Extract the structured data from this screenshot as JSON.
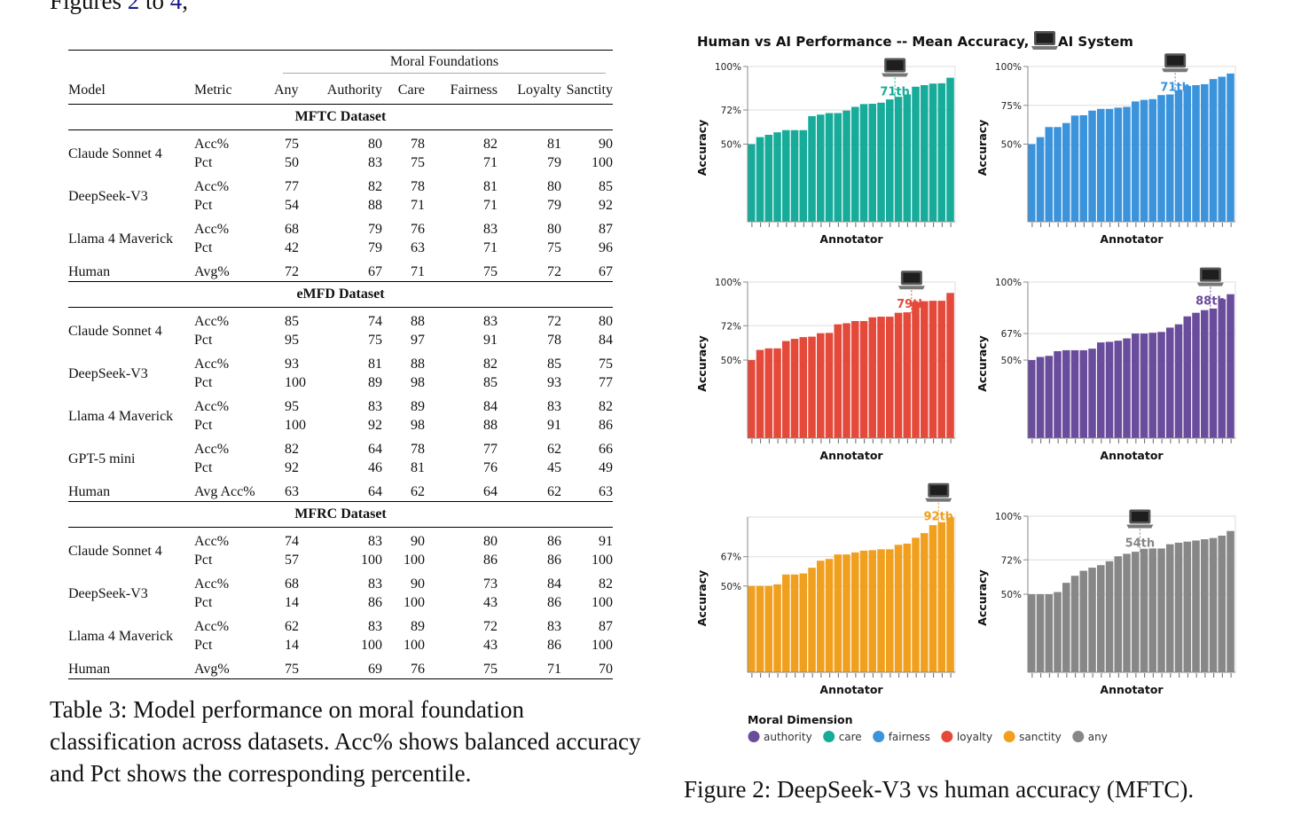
{
  "top_text": {
    "prefix": "Figures ",
    "link1": "2",
    "middle": " to ",
    "link2": "4",
    "suffix": ","
  },
  "table": {
    "group_header": "Moral Foundations",
    "columns": [
      "Model",
      "Metric",
      "Any",
      "Authority",
      "Care",
      "Fairness",
      "Loyalty",
      "Sanctity"
    ],
    "sections": [
      {
        "title": "MFTC Dataset",
        "rows": [
          {
            "model": "Claude Sonnet 4",
            "metrics": [
              [
                "Acc%",
                "75",
                "80",
                "78",
                "82",
                "81",
                "90"
              ],
              [
                "Pct",
                "50",
                "83",
                "75",
                "71",
                "79",
                "100"
              ]
            ]
          },
          {
            "model": "DeepSeek-V3",
            "metrics": [
              [
                "Acc%",
                "77",
                "82",
                "78",
                "81",
                "80",
                "85"
              ],
              [
                "Pct",
                "54",
                "88",
                "71",
                "71",
                "79",
                "92"
              ]
            ]
          },
          {
            "model": "Llama 4 Maverick",
            "metrics": [
              [
                "Acc%",
                "68",
                "79",
                "76",
                "83",
                "80",
                "87"
              ],
              [
                "Pct",
                "42",
                "79",
                "63",
                "71",
                "75",
                "96"
              ]
            ]
          },
          {
            "model": "Human",
            "metrics": [
              [
                "Avg%",
                "72",
                "67",
                "71",
                "75",
                "72",
                "67"
              ]
            ]
          }
        ]
      },
      {
        "title": "eMFD Dataset",
        "rows": [
          {
            "model": "Claude Sonnet 4",
            "metrics": [
              [
                "Acc%",
                "85",
                "74",
                "88",
                "83",
                "72",
                "80"
              ],
              [
                "Pct",
                "95",
                "75",
                "97",
                "91",
                "78",
                "84"
              ]
            ]
          },
          {
            "model": "DeepSeek-V3",
            "metrics": [
              [
                "Acc%",
                "93",
                "81",
                "88",
                "82",
                "85",
                "75"
              ],
              [
                "Pct",
                "100",
                "89",
                "98",
                "85",
                "93",
                "77"
              ]
            ]
          },
          {
            "model": "Llama 4 Maverick",
            "metrics": [
              [
                "Acc%",
                "95",
                "83",
                "89",
                "84",
                "83",
                "82"
              ],
              [
                "Pct",
                "100",
                "92",
                "98",
                "88",
                "91",
                "86"
              ]
            ]
          },
          {
            "model": "GPT-5 mini",
            "metrics": [
              [
                "Acc%",
                "82",
                "64",
                "78",
                "77",
                "62",
                "66"
              ],
              [
                "Pct",
                "92",
                "46",
                "81",
                "76",
                "45",
                "49"
              ]
            ]
          },
          {
            "model": "Human",
            "metrics": [
              [
                "Avg Acc%",
                "63",
                "64",
                "62",
                "64",
                "62",
                "63"
              ]
            ]
          }
        ]
      },
      {
        "title": "MFRC Dataset",
        "rows": [
          {
            "model": "Claude Sonnet 4",
            "metrics": [
              [
                "Acc%",
                "74",
                "83",
                "90",
                "80",
                "86",
                "91"
              ],
              [
                "Pct",
                "57",
                "100",
                "100",
                "86",
                "86",
                "100"
              ]
            ]
          },
          {
            "model": "DeepSeek-V3",
            "metrics": [
              [
                "Acc%",
                "68",
                "83",
                "90",
                "73",
                "84",
                "82"
              ],
              [
                "Pct",
                "14",
                "86",
                "100",
                "43",
                "86",
                "100"
              ]
            ]
          },
          {
            "model": "Llama 4 Maverick",
            "metrics": [
              [
                "Acc%",
                "62",
                "83",
                "89",
                "72",
                "83",
                "87"
              ],
              [
                "Pct",
                "14",
                "100",
                "100",
                "43",
                "86",
                "100"
              ]
            ]
          },
          {
            "model": "Human",
            "metrics": [
              [
                "Avg%",
                "75",
                "69",
                "76",
                "75",
                "71",
                "70"
              ]
            ]
          }
        ]
      }
    ],
    "caption": "Table 3: Model performance on moral foundation classification across datasets. Acc% shows balanced accuracy and Pct shows the corresponding percentile."
  },
  "figure": {
    "title": "Human vs AI Performance -- Mean Accuracy, -- 💻 AI System",
    "title_text": "Human vs AI Performance -- Mean Accuracy, --",
    "title_suffix": "AI System",
    "legend_title": "Moral Dimension",
    "legend": [
      {
        "label": "authority",
        "color": "#6a4c9c"
      },
      {
        "label": "care",
        "color": "#17ab9a"
      },
      {
        "label": "fairness",
        "color": "#3b93db"
      },
      {
        "label": "loyalty",
        "color": "#e4493a"
      },
      {
        "label": "sanctity",
        "color": "#f0a01e"
      },
      {
        "label": "any",
        "color": "#878787"
      }
    ],
    "caption": "Figure 2: DeepSeek-V3 vs human accuracy (MFTC)."
  },
  "chart_data": [
    {
      "type": "bar",
      "dimension": "care",
      "color": "#17ab9a",
      "xlabel": "Annotator",
      "ylabel": "Accuracy",
      "ylim": [
        0,
        100
      ],
      "yticks": [
        "100%",
        "72%",
        "50%"
      ],
      "ytick_values": [
        100,
        72,
        50
      ],
      "grid": true,
      "ai_percentile_label": "71th",
      "ai_percentile": 71,
      "ai_accuracy": 78,
      "values": [
        50,
        54.5,
        56,
        57.6,
        59,
        59,
        59,
        68,
        69,
        70,
        70,
        71.6,
        74,
        75.8,
        76,
        76.7,
        78.8,
        80.5,
        82,
        87,
        88,
        89,
        89.2,
        92.8
      ]
    },
    {
      "type": "bar",
      "dimension": "fairness",
      "color": "#3b93db",
      "xlabel": "Annotator",
      "ylabel": "Accuracy",
      "ylim": [
        0,
        100
      ],
      "yticks": [
        "100%",
        "75%",
        "50%"
      ],
      "ytick_values": [
        100,
        75,
        50
      ],
      "grid": true,
      "ai_percentile_label": "71th",
      "ai_percentile": 71,
      "ai_accuracy": 81,
      "values": [
        50,
        54.5,
        61,
        61,
        63.6,
        68.4,
        68.6,
        71.6,
        72.7,
        72.7,
        73.5,
        74,
        77.5,
        78.5,
        79,
        81.6,
        82,
        84.7,
        87.4,
        88,
        88.6,
        91.9,
        93.4,
        95.5
      ]
    },
    {
      "type": "bar",
      "dimension": "loyalty",
      "color": "#e4493a",
      "xlabel": "Annotator",
      "ylabel": "Accuracy",
      "ylim": [
        0,
        100
      ],
      "yticks": [
        "100%",
        "72%",
        "50%"
      ],
      "ytick_values": [
        100,
        72,
        50
      ],
      "grid": true,
      "ai_percentile_label": "79th",
      "ai_percentile": 79,
      "ai_accuracy": 80,
      "values": [
        50,
        56.5,
        57.5,
        57.5,
        62.2,
        63.6,
        64.7,
        65,
        67.2,
        67.4,
        72.9,
        73.6,
        75,
        75,
        77.4,
        77.8,
        77.8,
        80.3,
        80.6,
        87,
        87.7,
        88,
        88,
        93
      ]
    },
    {
      "type": "bar",
      "dimension": "authority",
      "color": "#6a4c9c",
      "xlabel": "Annotator",
      "ylabel": "Accuracy",
      "ylim": [
        0,
        100
      ],
      "yticks": [
        "100%",
        "67%",
        "50%"
      ],
      "ytick_values": [
        100,
        67,
        50
      ],
      "grid": true,
      "ai_percentile_label": "88th",
      "ai_percentile": 88,
      "ai_accuracy": 82,
      "values": [
        50,
        52,
        52.7,
        55.7,
        56.3,
        56.3,
        56.3,
        57.3,
        61.3,
        61.7,
        62.4,
        63.9,
        67,
        67,
        67.5,
        68,
        70.8,
        72.9,
        78,
        80.3,
        82,
        83,
        89,
        92.2
      ]
    },
    {
      "type": "bar",
      "dimension": "sanctity",
      "color": "#f0a01e",
      "xlabel": "Annotator",
      "ylabel": "Accuracy",
      "ylim": [
        0,
        90
      ],
      "yticks": [
        "67%",
        "50%"
      ],
      "ytick_values": [
        67,
        50
      ],
      "grid": true,
      "ai_percentile_label": "92th",
      "ai_percentile": 92,
      "ai_accuracy": 85,
      "values": [
        50,
        50,
        50,
        51,
        56.7,
        56.7,
        57.3,
        60.6,
        64.7,
        65.7,
        68.3,
        68.3,
        69.5,
        70.5,
        70.8,
        71.3,
        71.3,
        73.9,
        74.6,
        78,
        80.7,
        85.3,
        87,
        89.8
      ]
    },
    {
      "type": "bar",
      "dimension": "any",
      "color": "#878787",
      "xlabel": "Annotator",
      "ylabel": "Accuracy",
      "ylim": [
        0,
        100
      ],
      "yticks": [
        "100%",
        "72%",
        "50%"
      ],
      "ytick_values": [
        100,
        72,
        50
      ],
      "grid": true,
      "ai_percentile_label": "54th",
      "ai_percentile": 54,
      "ai_accuracy": 77,
      "values": [
        50,
        50,
        50,
        51.4,
        57.3,
        61.8,
        65,
        67,
        68.6,
        71.1,
        74.3,
        75.9,
        77.2,
        79.1,
        79.3,
        79.3,
        82,
        83,
        83.7,
        84.4,
        85.2,
        86,
        87.5,
        90.5
      ]
    }
  ]
}
